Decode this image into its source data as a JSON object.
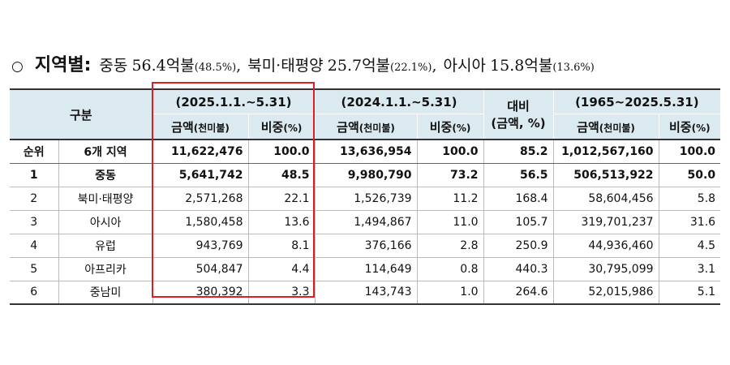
{
  "heading": {
    "bullet": "○",
    "lead": "지역별",
    "colon": ":",
    "items": [
      {
        "name": "중동",
        "amount": "56.4억불",
        "share": "(48.5%)"
      },
      {
        "name": "북미·태평양",
        "amount": "25.7억불",
        "share": "(22.1%)"
      },
      {
        "name": "아시아",
        "amount": "15.8억불",
        "share": "(13.6%)"
      }
    ],
    "separator": ","
  },
  "table": {
    "header": {
      "category": "구분",
      "period_2025": "(2025.1.1.~5.31)",
      "period_2024": "(2024.1.1.~5.31)",
      "comparison": "대비",
      "comparison_sub": "(금액, %)",
      "period_total": "(1965~2025.5.31)",
      "amount_main": "금액",
      "amount_unit": "(천미불)",
      "share_main": "비중",
      "share_unit": "(%)"
    },
    "rows": [
      {
        "rank": "순위",
        "region": "6개 지역",
        "amt2025": "11,622,476",
        "share2025": "100.0",
        "amt2024": "13,636,954",
        "share2024": "100.0",
        "ratio": "85.2",
        "amtTotal": "1,012,567,160",
        "shareTotal": "100.0"
      },
      {
        "rank": "1",
        "region": "중동",
        "amt2025": "5,641,742",
        "share2025": "48.5",
        "amt2024": "9,980,790",
        "share2024": "73.2",
        "ratio": "56.5",
        "amtTotal": "506,513,922",
        "shareTotal": "50.0"
      },
      {
        "rank": "2",
        "region": "북미·태평양",
        "amt2025": "2,571,268",
        "share2025": "22.1",
        "amt2024": "1,526,739",
        "share2024": "11.2",
        "ratio": "168.4",
        "amtTotal": "58,604,456",
        "shareTotal": "5.8"
      },
      {
        "rank": "3",
        "region": "아시아",
        "amt2025": "1,580,458",
        "share2025": "13.6",
        "amt2024": "1,494,867",
        "share2024": "11.0",
        "ratio": "105.7",
        "amtTotal": "319,701,237",
        "shareTotal": "31.6"
      },
      {
        "rank": "4",
        "region": "유럽",
        "amt2025": "943,769",
        "share2025": "8.1",
        "amt2024": "376,166",
        "share2024": "2.8",
        "ratio": "250.9",
        "amtTotal": "44,936,460",
        "shareTotal": "4.5"
      },
      {
        "rank": "5",
        "region": "아프리카",
        "amt2025": "504,847",
        "share2025": "4.4",
        "amt2024": "114,649",
        "share2024": "0.8",
        "ratio": "440.3",
        "amtTotal": "30,795,099",
        "shareTotal": "3.1"
      },
      {
        "rank": "6",
        "region": "중남미",
        "amt2025": "380,392",
        "share2025": "3.3",
        "amt2024": "143,743",
        "share2024": "1.0",
        "ratio": "264.6",
        "amtTotal": "52,015,986",
        "shareTotal": "5.1"
      }
    ]
  },
  "colors": {
    "header_bg": "#dbe9f1",
    "highlight_border": "#e31b23",
    "rule": "#333333"
  }
}
